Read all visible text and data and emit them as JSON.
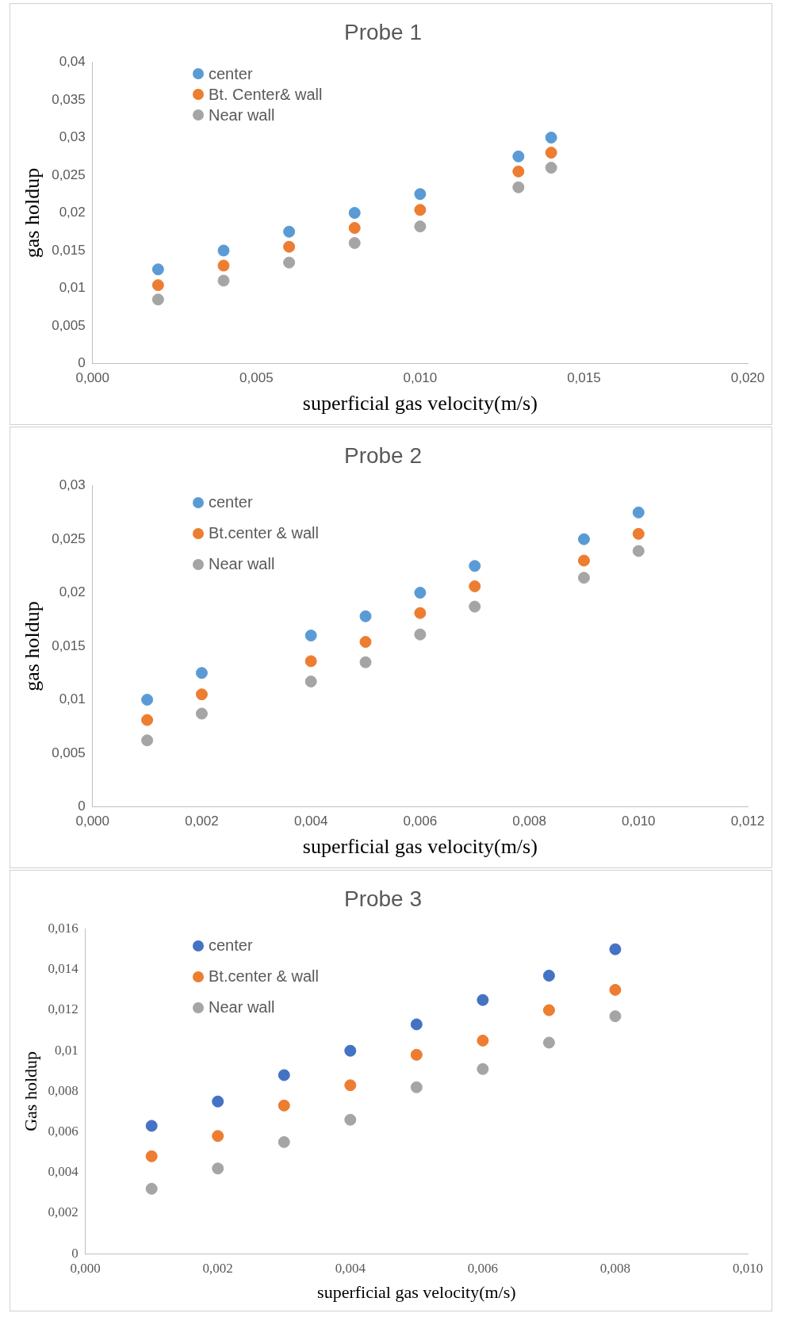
{
  "chart_data": [
    {
      "type": "scatter",
      "title": "Probe 1",
      "xlabel": "superficial gas velocity(m/s)",
      "ylabel": "gas holdup",
      "legend": "top left",
      "marker": "circle",
      "grid": false,
      "x": [
        0.002,
        0.004,
        0.006,
        0.008,
        0.01,
        0.013,
        0.014
      ],
      "series": [
        {
          "name": "center",
          "color": "#5b9bd5",
          "values": [
            0.0125,
            0.015,
            0.0175,
            0.02,
            0.0225,
            0.0275,
            0.03
          ]
        },
        {
          "name": "Bt. Center& wall",
          "color": "#ed7d31",
          "values": [
            0.0104,
            0.013,
            0.0155,
            0.018,
            0.0204,
            0.0255,
            0.028
          ]
        },
        {
          "name": "Near wall",
          "color": "#a5a5a5",
          "values": [
            0.0085,
            0.011,
            0.0134,
            0.016,
            0.0182,
            0.0234,
            0.026
          ]
        }
      ],
      "xlim": [
        0,
        0.02
      ],
      "xticks": [
        {
          "value": 0,
          "label": "0,000"
        },
        {
          "value": 0.005,
          "label": "0,005"
        },
        {
          "value": 0.01,
          "label": "0,010"
        },
        {
          "value": 0.015,
          "label": "0,015"
        },
        {
          "value": 0.02,
          "label": "0,020"
        }
      ],
      "ylim": [
        0,
        0.04
      ],
      "yticks": [
        {
          "value": 0,
          "label": "0"
        },
        {
          "value": 0.005,
          "label": "0,005"
        },
        {
          "value": 0.01,
          "label": "0,01"
        },
        {
          "value": 0.015,
          "label": "0,015"
        },
        {
          "value": 0.02,
          "label": "0,02"
        },
        {
          "value": 0.025,
          "label": "0,025"
        },
        {
          "value": 0.03,
          "label": "0,03"
        },
        {
          "value": 0.035,
          "label": "0,035"
        },
        {
          "value": 0.04,
          "label": "0,04"
        }
      ]
    },
    {
      "type": "scatter",
      "title": "Probe 2",
      "xlabel": "superficial gas velocity(m/s)",
      "ylabel": "gas holdup",
      "legend": "top left",
      "marker": "circle",
      "grid": false,
      "x": [
        0.001,
        0.002,
        0.004,
        0.005,
        0.006,
        0.007,
        0.009,
        0.01
      ],
      "series": [
        {
          "name": "center",
          "color": "#5b9bd5",
          "values": [
            0.01,
            0.0125,
            0.016,
            0.0178,
            0.02,
            0.0225,
            0.025,
            0.0275
          ]
        },
        {
          "name": "Bt.center & wall",
          "color": "#ed7d31",
          "values": [
            0.0081,
            0.0105,
            0.0136,
            0.0154,
            0.0181,
            0.0206,
            0.023,
            0.0255
          ]
        },
        {
          "name": "Near wall",
          "color": "#a5a5a5",
          "values": [
            0.0062,
            0.0087,
            0.0117,
            0.0135,
            0.0161,
            0.0187,
            0.0214,
            0.0239
          ]
        }
      ],
      "xlim": [
        0,
        0.012
      ],
      "xticks": [
        {
          "value": 0,
          "label": "0,000"
        },
        {
          "value": 0.002,
          "label": "0,002"
        },
        {
          "value": 0.004,
          "label": "0,004"
        },
        {
          "value": 0.006,
          "label": "0,006"
        },
        {
          "value": 0.008,
          "label": "0,008"
        },
        {
          "value": 0.01,
          "label": "0,010"
        },
        {
          "value": 0.012,
          "label": "0,012"
        }
      ],
      "ylim": [
        0,
        0.03
      ],
      "yticks": [
        {
          "value": 0,
          "label": "0"
        },
        {
          "value": 0.005,
          "label": "0,005"
        },
        {
          "value": 0.01,
          "label": "0,01"
        },
        {
          "value": 0.015,
          "label": "0,015"
        },
        {
          "value": 0.02,
          "label": "0,02"
        },
        {
          "value": 0.025,
          "label": "0,025"
        },
        {
          "value": 0.03,
          "label": "0,03"
        }
      ]
    },
    {
      "type": "scatter",
      "title": "Probe 3",
      "xlabel": "superficial gas velocity(m/s)",
      "ylabel": "Gas holdup",
      "legend": "top left",
      "marker": "circle",
      "grid": false,
      "x": [
        0.001,
        0.002,
        0.003,
        0.004,
        0.005,
        0.006,
        0.007,
        0.008
      ],
      "series": [
        {
          "name": "center",
          "color": "#4472c4",
          "values": [
            0.0063,
            0.0075,
            0.0088,
            0.01,
            0.0113,
            0.0125,
            0.0137,
            0.015
          ]
        },
        {
          "name": "Bt.center & wall",
          "color": "#ed7d31",
          "values": [
            0.0048,
            0.0058,
            0.0073,
            0.0083,
            0.0098,
            0.0105,
            0.012,
            0.013
          ]
        },
        {
          "name": "Near wall",
          "color": "#a5a5a5",
          "values": [
            0.0032,
            0.0042,
            0.0055,
            0.0066,
            0.0082,
            0.0091,
            0.0104,
            0.0117
          ]
        }
      ],
      "xlim": [
        0,
        0.01
      ],
      "xticks": [
        {
          "value": 0,
          "label": "0,000"
        },
        {
          "value": 0.002,
          "label": "0,002"
        },
        {
          "value": 0.004,
          "label": "0,004"
        },
        {
          "value": 0.006,
          "label": "0,006"
        },
        {
          "value": 0.008,
          "label": "0,008"
        },
        {
          "value": 0.01,
          "label": "0,010"
        }
      ],
      "ylim": [
        0,
        0.016
      ],
      "yticks": [
        {
          "value": 0,
          "label": "0"
        },
        {
          "value": 0.002,
          "label": "0,002"
        },
        {
          "value": 0.004,
          "label": "0,004"
        },
        {
          "value": 0.006,
          "label": "0,006"
        },
        {
          "value": 0.008,
          "label": "0,008"
        },
        {
          "value": 0.01,
          "label": "0,01"
        },
        {
          "value": 0.012,
          "label": "0,012"
        },
        {
          "value": 0.014,
          "label": "0,014"
        },
        {
          "value": 0.016,
          "label": "0,016"
        }
      ]
    }
  ]
}
